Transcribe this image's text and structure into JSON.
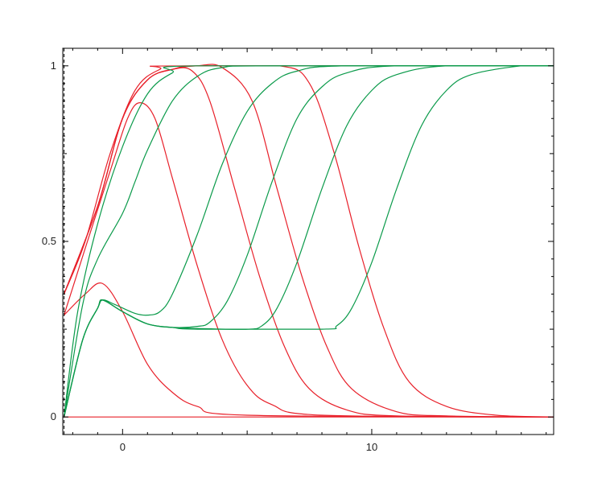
{
  "chart_data": {
    "type": "line",
    "title": "",
    "xlabel": "",
    "ylabel": "",
    "xlim": [
      -2.4,
      17.3
    ],
    "ylim": [
      -0.05,
      1.05
    ],
    "x_ticks": [
      {
        "value": 0,
        "label": "0"
      },
      {
        "value": 10,
        "label": "10"
      }
    ],
    "y_ticks": [
      {
        "value": 0,
        "label": "0"
      },
      {
        "value": 0.5,
        "label": "0.5"
      },
      {
        "value": 1,
        "label": "1"
      }
    ],
    "vline": {
      "x": -2.35,
      "style": "dashed"
    },
    "grid": false,
    "legend": "none",
    "colors": {
      "red": "#e8202a",
      "green": "#0a9a4a",
      "axis": "#000000"
    },
    "series": [
      {
        "color": "red",
        "points": [
          [
            -2.35,
            0.35
          ],
          [
            -1.5,
            0.5
          ],
          [
            -0.5,
            0.75
          ],
          [
            0.5,
            0.93
          ],
          [
            1.5,
            0.99
          ],
          [
            2.5,
            1.0
          ],
          [
            17.3,
            1.0
          ]
        ]
      },
      {
        "color": "red",
        "points": [
          [
            -2.35,
            0.0
          ],
          [
            17.3,
            0.0
          ]
        ]
      },
      {
        "color": "red",
        "points": [
          [
            -2.35,
            0.29
          ],
          [
            -1.5,
            0.35
          ],
          [
            -0.8,
            0.38
          ],
          [
            0,
            0.3
          ],
          [
            1,
            0.15
          ],
          [
            2,
            0.07
          ],
          [
            3,
            0.03
          ],
          [
            5,
            0.005
          ],
          [
            17.3,
            0.0
          ]
        ]
      },
      {
        "color": "red",
        "points": [
          [
            -2.35,
            0.29
          ],
          [
            -1.5,
            0.48
          ],
          [
            -0.5,
            0.7
          ],
          [
            0.2,
            0.85
          ],
          [
            0.7,
            0.895
          ],
          [
            1.3,
            0.85
          ],
          [
            2,
            0.68
          ],
          [
            3,
            0.43
          ],
          [
            4,
            0.22
          ],
          [
            5,
            0.09
          ],
          [
            6,
            0.035
          ],
          [
            8,
            0.005
          ],
          [
            17.3,
            0.0
          ]
        ]
      },
      {
        "color": "red",
        "points": [
          [
            -2.35,
            0.35
          ],
          [
            -1,
            0.6
          ],
          [
            0,
            0.85
          ],
          [
            1,
            0.96
          ],
          [
            2,
            0.99
          ],
          [
            2.8,
            0.985
          ],
          [
            3.5,
            0.9
          ],
          [
            4.5,
            0.65
          ],
          [
            5.5,
            0.4
          ],
          [
            6.5,
            0.2
          ],
          [
            7.5,
            0.08
          ],
          [
            9,
            0.02
          ],
          [
            11,
            0.003
          ],
          [
            17.3,
            0.0
          ]
        ]
      },
      {
        "color": "red",
        "points": [
          [
            -2.35,
            0.35
          ],
          [
            -1,
            0.6
          ],
          [
            0,
            0.85
          ],
          [
            1,
            0.96
          ],
          [
            2,
            0.99
          ],
          [
            3,
            1.0
          ],
          [
            4,
            0.995
          ],
          [
            5.2,
            0.9
          ],
          [
            6.2,
            0.65
          ],
          [
            7.2,
            0.4
          ],
          [
            8.2,
            0.2
          ],
          [
            9.2,
            0.08
          ],
          [
            11,
            0.015
          ],
          [
            13,
            0.003
          ],
          [
            17.3,
            0.0
          ]
        ]
      },
      {
        "color": "red",
        "points": [
          [
            -2.35,
            0.35
          ],
          [
            -1,
            0.6
          ],
          [
            0,
            0.85
          ],
          [
            1,
            0.96
          ],
          [
            2,
            0.99
          ],
          [
            3,
            1.0
          ],
          [
            6.3,
            1.0
          ],
          [
            7.5,
            0.95
          ],
          [
            8.5,
            0.75
          ],
          [
            9.5,
            0.48
          ],
          [
            10.5,
            0.25
          ],
          [
            11.5,
            0.1
          ],
          [
            13,
            0.03
          ],
          [
            15,
            0.005
          ],
          [
            17.3,
            0.0
          ]
        ]
      },
      {
        "color": "green",
        "points": [
          [
            -2.35,
            0.0
          ],
          [
            -1.8,
            0.3
          ],
          [
            -1,
            0.55
          ],
          [
            0,
            0.77
          ],
          [
            1,
            0.92
          ],
          [
            2,
            0.98
          ],
          [
            3,
            1.0
          ],
          [
            17.3,
            1.0
          ]
        ]
      },
      {
        "color": "green",
        "points": [
          [
            -2.35,
            0.0
          ],
          [
            -1.6,
            0.32
          ],
          [
            -1,
            0.45
          ],
          [
            0,
            0.58
          ],
          [
            0.5,
            0.67
          ],
          [
            1,
            0.76
          ],
          [
            2,
            0.9
          ],
          [
            3,
            0.97
          ],
          [
            4,
            0.995
          ],
          [
            6,
            1.0
          ],
          [
            17.3,
            1.0
          ]
        ]
      },
      {
        "color": "green",
        "points": [
          [
            -2.35,
            0.0
          ],
          [
            -1.6,
            0.22
          ],
          [
            -1,
            0.31
          ],
          [
            -0.8,
            0.333
          ],
          [
            -0.3,
            0.32
          ],
          [
            0.5,
            0.295
          ],
          [
            1,
            0.29
          ],
          [
            1.5,
            0.3
          ],
          [
            2,
            0.35
          ],
          [
            3,
            0.52
          ],
          [
            4,
            0.72
          ],
          [
            5,
            0.87
          ],
          [
            6,
            0.95
          ],
          [
            7,
            0.985
          ],
          [
            9,
            1.0
          ],
          [
            17.3,
            1.0
          ]
        ]
      },
      {
        "color": "green",
        "points": [
          [
            -2.35,
            0.0
          ],
          [
            -1.6,
            0.22
          ],
          [
            -1,
            0.31
          ],
          [
            -0.8,
            0.333
          ],
          [
            0,
            0.3
          ],
          [
            1,
            0.265
          ],
          [
            2,
            0.255
          ],
          [
            3,
            0.258
          ],
          [
            3.5,
            0.27
          ],
          [
            4.2,
            0.33
          ],
          [
            5,
            0.46
          ],
          [
            6,
            0.67
          ],
          [
            7,
            0.85
          ],
          [
            8,
            0.94
          ],
          [
            9,
            0.98
          ],
          [
            11,
            1.0
          ],
          [
            17.3,
            1.0
          ]
        ]
      },
      {
        "color": "green",
        "points": [
          [
            -2.35,
            0.0
          ],
          [
            -1.6,
            0.22
          ],
          [
            -1,
            0.31
          ],
          [
            -0.8,
            0.333
          ],
          [
            0,
            0.3
          ],
          [
            1,
            0.265
          ],
          [
            2,
            0.255
          ],
          [
            3,
            0.252
          ],
          [
            5,
            0.25
          ],
          [
            5.6,
            0.26
          ],
          [
            6.2,
            0.31
          ],
          [
            7,
            0.44
          ],
          [
            8,
            0.65
          ],
          [
            9,
            0.83
          ],
          [
            10,
            0.93
          ],
          [
            11,
            0.975
          ],
          [
            13,
            1.0
          ],
          [
            17.3,
            1.0
          ]
        ]
      },
      {
        "color": "green",
        "points": [
          [
            -2.35,
            0.0
          ],
          [
            -1.6,
            0.22
          ],
          [
            -1,
            0.31
          ],
          [
            -0.8,
            0.333
          ],
          [
            0,
            0.3
          ],
          [
            1,
            0.265
          ],
          [
            2,
            0.255
          ],
          [
            3,
            0.25
          ],
          [
            8,
            0.25
          ],
          [
            8.6,
            0.26
          ],
          [
            9.2,
            0.31
          ],
          [
            10,
            0.44
          ],
          [
            11,
            0.65
          ],
          [
            12,
            0.83
          ],
          [
            13,
            0.93
          ],
          [
            14,
            0.975
          ],
          [
            16,
            1.0
          ],
          [
            17.3,
            1.0
          ]
        ]
      }
    ]
  }
}
